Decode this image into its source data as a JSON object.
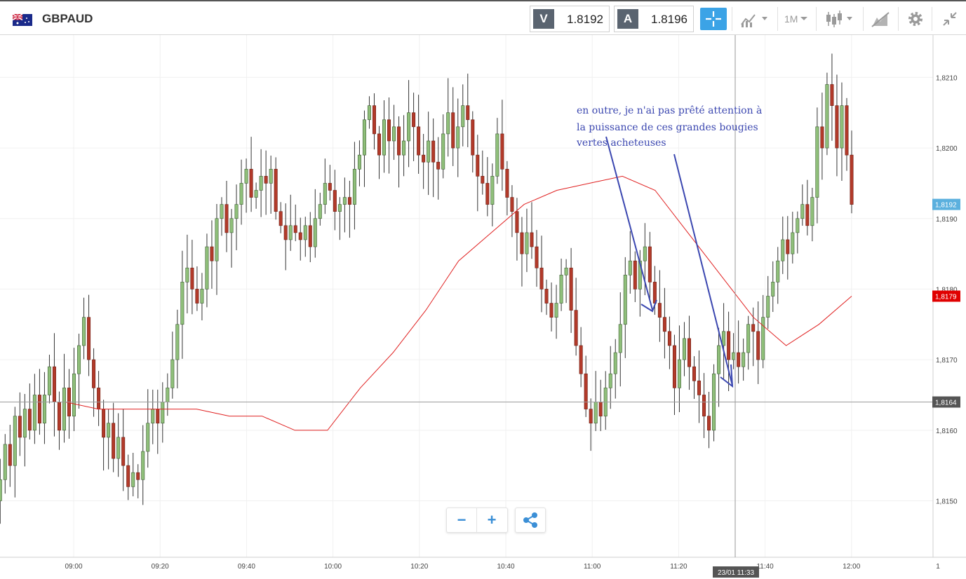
{
  "header": {
    "symbol": "GBPAUD",
    "bid_tag": "V",
    "bid_value": "1.8192",
    "ask_tag": "A",
    "ask_value": "1.8196",
    "timeframe": "1M",
    "icons": [
      "flag-gb-au-icon",
      "crosshair-icon",
      "chart-type-icon",
      "timeframe-dropdown",
      "candlestick-icon",
      "drawing-icon",
      "gear-icon",
      "collapse-icon"
    ]
  },
  "annotation": {
    "lines": [
      "en outre, je n'ai pas prêté attention à",
      "la puissance de ces grandes bougies",
      "vertes acheteuses"
    ]
  },
  "crosshair": {
    "time_label": "23/01 11:33",
    "price_label": "1,8164"
  },
  "badges": {
    "current_price": "1,8192",
    "ma_value": "1,8179",
    "current_color": "#5bb0de",
    "ma_color": "#e00000"
  },
  "zoom": {
    "out": "−",
    "in": "+"
  },
  "chart_data": {
    "type": "candlestick",
    "symbol": "GBPAUD",
    "timeframe": "1M",
    "ylim": [
      1.8142,
      1.8216
    ],
    "yticks": [
      {
        "v": 1.815,
        "label": "1,8150"
      },
      {
        "v": 1.816,
        "label": "1,8160"
      },
      {
        "v": 1.817,
        "label": "1,8170"
      },
      {
        "v": 1.818,
        "label": "1,8180"
      },
      {
        "v": 1.819,
        "label": "1,8190"
      },
      {
        "v": 1.82,
        "label": "1,8200"
      },
      {
        "v": 1.821,
        "label": "1,8210"
      }
    ],
    "xticks": [
      "09:00",
      "09:20",
      "09:40",
      "10:00",
      "10:20",
      "10:40",
      "11:00",
      "11:20",
      "11:40",
      "12:00",
      "1"
    ],
    "xtick_minutes": [
      540,
      560,
      580,
      600,
      620,
      640,
      660,
      680,
      700,
      720,
      740
    ],
    "x_start_minute": 523,
    "crosshair_price": 1.8164,
    "close_path": [
      1.8153,
      1.8158,
      1.8155,
      1.8162,
      1.8159,
      1.8163,
      1.816,
      1.8165,
      1.8161,
      1.8165,
      1.8169,
      1.8164,
      1.816,
      1.8166,
      1.8162,
      1.8168,
      1.8172,
      1.8176,
      1.817,
      1.8166,
      1.8163,
      1.8159,
      1.8161,
      1.8156,
      1.8159,
      1.8155,
      1.8152,
      1.8154,
      1.8153,
      1.8157,
      1.8161,
      1.8163,
      1.8161,
      1.8164,
      1.8166,
      1.817,
      1.8175,
      1.8181,
      1.8183,
      1.818,
      1.8178,
      1.818,
      1.8186,
      1.8184,
      1.819,
      1.8192,
      1.8188,
      1.819,
      1.8192,
      1.8195,
      1.8197,
      1.8193,
      1.8194,
      1.8196,
      1.8195,
      1.8197,
      1.8191,
      1.8189,
      1.8187,
      1.8189,
      1.8188,
      1.8187,
      1.8189,
      1.8186,
      1.819,
      1.8192,
      1.8195,
      1.8194,
      1.8191,
      1.8192,
      1.8193,
      1.8192,
      1.8197,
      1.8199,
      1.8204,
      1.8206,
      1.8202,
      1.8199,
      1.8204,
      1.8201,
      1.8203,
      1.8199,
      1.8201,
      1.8205,
      1.8203,
      1.8199,
      1.8198,
      1.8201,
      1.8198,
      1.8197,
      1.8202,
      1.8205,
      1.82,
      1.8203,
      1.8206,
      1.8204,
      1.8199,
      1.8196,
      1.8195,
      1.8192,
      1.8196,
      1.8202,
      1.8197,
      1.8193,
      1.8191,
      1.8188,
      1.8185,
      1.8188,
      1.8186,
      1.8183,
      1.818,
      1.8178,
      1.8176,
      1.8178,
      1.8182,
      1.8183,
      1.8177,
      1.8172,
      1.8168,
      1.8163,
      1.8161,
      1.8164,
      1.8162,
      1.8166,
      1.8168,
      1.8171,
      1.8175,
      1.8182,
      1.8184,
      1.818,
      1.8184,
      1.8186,
      1.8181,
      1.8178,
      1.8176,
      1.8174,
      1.8172,
      1.8166,
      1.817,
      1.8173,
      1.8169,
      1.8167,
      1.8165,
      1.8162,
      1.816,
      1.8168,
      1.8172,
      1.8174,
      1.817,
      1.8171,
      1.8169,
      1.8171,
      1.8175,
      1.8174,
      1.817,
      1.8176,
      1.8179,
      1.8181,
      1.8184,
      1.8187,
      1.8185,
      1.8188,
      1.819,
      1.8192,
      1.8189,
      1.8193,
      1.8203,
      1.82,
      1.8209,
      1.8206,
      1.82,
      1.8206,
      1.8199,
      1.8192
    ],
    "ma_path": [
      1.8164,
      1.8164,
      1.8164,
      1.8163,
      1.8163,
      1.8163,
      1.8163,
      1.8162,
      1.8162,
      1.816,
      1.816,
      1.8166,
      1.8171,
      1.8177,
      1.8184,
      1.8188,
      1.8192,
      1.8194,
      1.8195,
      1.8196,
      1.8194,
      1.8188,
      1.8182,
      1.8176,
      1.8172,
      1.8175,
      1.8179
    ]
  }
}
